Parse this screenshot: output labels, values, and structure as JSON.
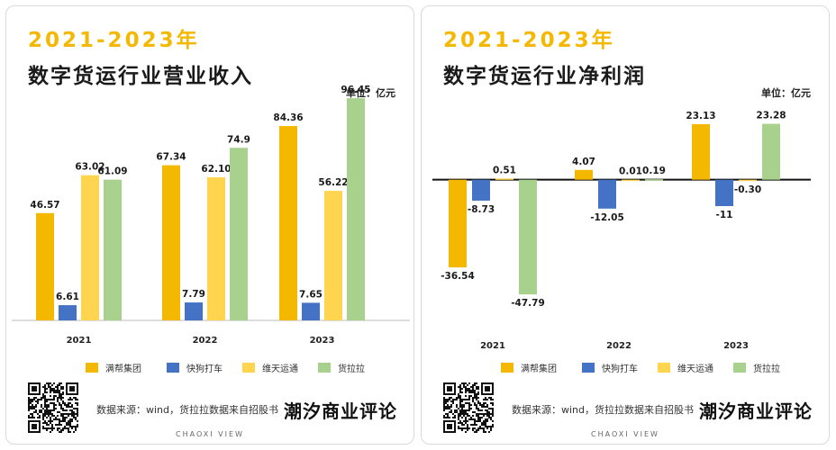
{
  "colors": {
    "manbang": "#f5b800",
    "kuaigou": "#4472c4",
    "weitian": "#ffd54f",
    "huolala": "#a9d18e",
    "accent": "#f5b800"
  },
  "legend": [
    "满帮集团",
    "快狗打车",
    "维天运通",
    "货拉拉"
  ],
  "source_label": "数据来源：",
  "source_text": "wind，货拉拉数据来自招股书",
  "brand": "潮汐商业评论",
  "footer": "CHAOXI VIEW",
  "panels": [
    {
      "years_heading": "2021-2023年",
      "title": "数字货运行业营业收入",
      "unit": "单位：亿元"
    },
    {
      "years_heading": "2021-2023年",
      "title": "数字货运行业净利润",
      "unit": "单位：亿元"
    }
  ],
  "chart_data": [
    {
      "type": "bar",
      "title": "数字货运行业营业收入",
      "unit": "单位：亿元",
      "categories": [
        "2021",
        "2022",
        "2023"
      ],
      "series": [
        {
          "name": "满帮集团",
          "values": [
            46.57,
            67.34,
            84.36
          ],
          "labels": [
            "46.57",
            "67.34",
            "84.36"
          ]
        },
        {
          "name": "快狗打车",
          "values": [
            6.61,
            7.79,
            7.65
          ],
          "labels": [
            "6.61",
            "7.79",
            "7.65"
          ]
        },
        {
          "name": "维天运通",
          "values": [
            63.02,
            62.1,
            56.22
          ],
          "labels": [
            "63.02",
            "62.10",
            "56.22"
          ]
        },
        {
          "name": "货拉拉",
          "values": [
            61.09,
            74.9,
            96.45
          ],
          "labels": [
            "61.09",
            "74.9",
            "96.45"
          ]
        }
      ],
      "ylim": [
        0,
        100
      ],
      "grid": false,
      "legend_position": "bottom"
    },
    {
      "type": "bar",
      "title": "数字货运行业净利润",
      "unit": "单位：亿元",
      "categories": [
        "2021",
        "2022",
        "2023"
      ],
      "series": [
        {
          "name": "满帮集团",
          "values": [
            -36.54,
            4.07,
            23.13
          ],
          "labels": [
            "-36.54",
            "4.07",
            "23.13"
          ]
        },
        {
          "name": "快狗打车",
          "values": [
            -8.73,
            -12.05,
            -11
          ],
          "labels": [
            "-8.73",
            "-12.05",
            "-11"
          ]
        },
        {
          "name": "维天运通",
          "values": [
            0.51,
            0.01,
            -0.3
          ],
          "labels": [
            "0.51",
            "0.01",
            "-0.30"
          ]
        },
        {
          "name": "货拉拉",
          "values": [
            -47.79,
            0.19,
            23.28
          ],
          "labels": [
            "-47.79",
            "0.19",
            "23.28"
          ]
        }
      ],
      "ylim": [
        -50,
        25
      ],
      "grid": false,
      "legend_position": "bottom"
    }
  ]
}
